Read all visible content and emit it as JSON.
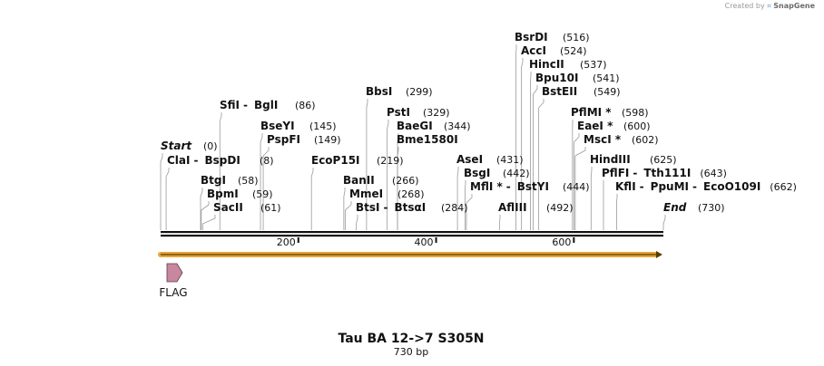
{
  "credit": {
    "prefix": "Created by",
    "brand": "SnapGene"
  },
  "map": {
    "title": "Tau BA 12->7  S305N",
    "subtitle": "730 bp",
    "length_bp": 730,
    "ticks": [
      "200",
      "400",
      "600"
    ],
    "tick_values": [
      200,
      400,
      600
    ],
    "features": [
      {
        "label": "FLAG",
        "start": 1,
        "end": 24,
        "color": "#c9879f"
      }
    ],
    "orf": {
      "start": 1,
      "end": 730,
      "color": "#e8a63a"
    },
    "sites": [
      {
        "names": [
          "Start"
        ],
        "pos": "(0)",
        "bp": [
          0
        ],
        "italic": true,
        "row": 0
      },
      {
        "names": [
          "ClaI",
          "BspDI"
        ],
        "pos": "(8)",
        "bp": [
          8
        ],
        "row": 1
      },
      {
        "names": [
          "BtgI"
        ],
        "pos": "(58)",
        "bp": [
          58
        ],
        "row": 2
      },
      {
        "names": [
          "BpmI"
        ],
        "pos": "(59)",
        "bp": [
          59
        ],
        "row": 3
      },
      {
        "names": [
          "SacII"
        ],
        "pos": "(61)",
        "bp": [
          61
        ],
        "row": 4
      },
      {
        "names": [
          "SfiI",
          "BglI"
        ],
        "pos": "(86)",
        "bp": [
          86
        ],
        "row": 5
      },
      {
        "names": [
          "BseYI"
        ],
        "pos": "(145)",
        "bp": [
          145
        ],
        "row": 6
      },
      {
        "names": [
          "PspFI"
        ],
        "pos": "(149)",
        "bp": [
          149
        ],
        "row": 7
      },
      {
        "names": [
          "EcoP15I"
        ],
        "pos": "(219)",
        "bp": [
          219
        ],
        "row": 8
      },
      {
        "names": [
          "BanII"
        ],
        "pos": "(266)",
        "bp": [
          266
        ],
        "row": 9
      },
      {
        "names": [
          "MmeI"
        ],
        "pos": "(268)",
        "bp": [
          268
        ],
        "row": 10
      },
      {
        "names": [
          "BtsI",
          "BtsαI"
        ],
        "pos": "(284)",
        "bp": [
          284
        ],
        "row": 11
      },
      {
        "names": [
          "BbsI"
        ],
        "pos": "(299)",
        "bp": [
          299
        ],
        "row": 12
      },
      {
        "names": [
          "PstI"
        ],
        "pos": "(329)",
        "bp": [
          329
        ],
        "row": 13
      },
      {
        "names": [
          "BaeGI"
        ],
        "pos": "(344)",
        "bp": [
          344
        ],
        "row": 14
      },
      {
        "names": [
          "Bme1580I"
        ],
        "pos": "",
        "bp": [
          344
        ],
        "row": 15
      },
      {
        "names": [
          "AseI"
        ],
        "pos": "(431)",
        "bp": [
          431
        ],
        "row": 16
      },
      {
        "names": [
          "BsgI"
        ],
        "pos": "(442)",
        "bp": [
          442
        ],
        "row": 17
      },
      {
        "names": [
          "MflI *",
          "BstYI"
        ],
        "pos": "(444)",
        "bp": [
          444
        ],
        "row": 18
      },
      {
        "names": [
          "AflIII"
        ],
        "pos": "(492)",
        "bp": [
          492
        ],
        "row": 19
      },
      {
        "names": [
          "BsrDI"
        ],
        "pos": "(516)",
        "bp": [
          516
        ],
        "row": 20
      },
      {
        "names": [
          "AccI"
        ],
        "pos": "(524)",
        "bp": [
          524
        ],
        "row": 21
      },
      {
        "names": [
          "HincII"
        ],
        "pos": "(537)",
        "bp": [
          537
        ],
        "row": 22
      },
      {
        "names": [
          "Bpu10I"
        ],
        "pos": "(541)",
        "bp": [
          541
        ],
        "row": 23
      },
      {
        "names": [
          "BstEII"
        ],
        "pos": "(549)",
        "bp": [
          549
        ],
        "row": 24
      },
      {
        "names": [
          "PflMI *"
        ],
        "pos": "(598)",
        "bp": [
          598
        ],
        "row": 25
      },
      {
        "names": [
          "EaeI *"
        ],
        "pos": "(600)",
        "bp": [
          600
        ],
        "row": 26
      },
      {
        "names": [
          "MscI *"
        ],
        "pos": "(602)",
        "bp": [
          602
        ],
        "row": 27
      },
      {
        "names": [
          "HindIII"
        ],
        "pos": "(625)",
        "bp": [
          625
        ],
        "row": 28
      },
      {
        "names": [
          "PflFI",
          "Tth111I"
        ],
        "pos": "(643)",
        "bp": [
          643
        ],
        "row": 29
      },
      {
        "names": [
          "KflI",
          "PpuMI",
          "EcoO109I"
        ],
        "pos": "(662)",
        "bp": [
          662
        ],
        "row": 30
      },
      {
        "names": [
          "End"
        ],
        "pos": "(730)",
        "bp": [
          730
        ],
        "italic": true,
        "row": 31
      }
    ]
  }
}
